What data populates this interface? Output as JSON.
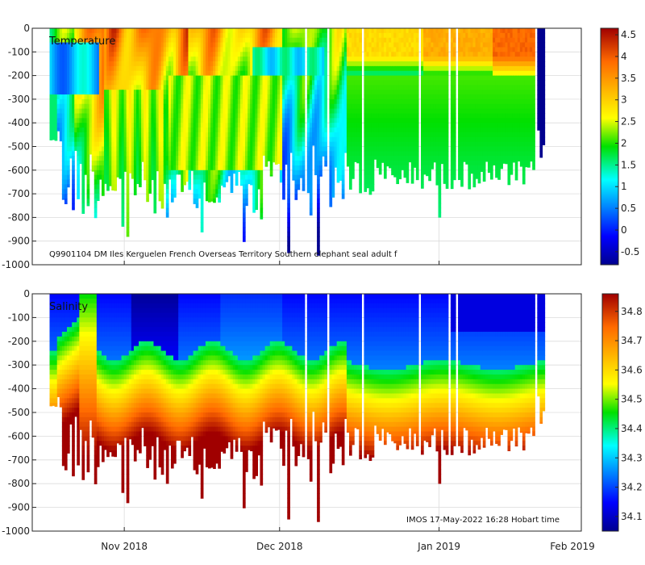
{
  "chart_data": [
    {
      "type": "heatmap",
      "title": "Temperature",
      "annotation": "Q9901104 DM Iles Kerguelen French Overseas Territory Southern elephant seal adult f",
      "y_ticks": [
        "0",
        "-100",
        "-200",
        "-300",
        "-400",
        "-500",
        "-600",
        "-700",
        "-800",
        "-900",
        "-1000"
      ],
      "ylim": [
        -1000,
        0
      ],
      "colorbar_ticks": [
        "4.5",
        "4",
        "3.5",
        "3",
        "2.5",
        "2",
        "1.5",
        "1",
        "0.5",
        "0",
        "-0.5"
      ],
      "colorbar_range": [
        -0.8,
        4.65
      ],
      "colormap": "jet-like",
      "grid": true
    },
    {
      "type": "heatmap",
      "title": "Salinity",
      "annotation": "IMOS 17-May-2022 16:28 Hobart time",
      "y_ticks": [
        "0",
        "-100",
        "-200",
        "-300",
        "-400",
        "-500",
        "-600",
        "-700",
        "-800",
        "-900",
        "-1000"
      ],
      "ylim": [
        -1000,
        0
      ],
      "colorbar_ticks": [
        "34.8",
        "34.7",
        "34.6",
        "34.5",
        "34.4",
        "34.3",
        "34.2",
        "34.1"
      ],
      "colorbar_range": [
        34.05,
        34.86
      ],
      "colormap": "jet-like",
      "grid": true
    }
  ],
  "x_axis": {
    "tick_labels": [
      "Nov 2018",
      "Dec 2018",
      "Jan 2019",
      "Feb 2019"
    ],
    "xlim_days": [
      0,
      105
    ],
    "tick_days": [
      17.6,
      47.3,
      77.8,
      108.6
    ]
  },
  "profiles": {
    "start_day": 3.6,
    "end_day": 97.8,
    "count": 200
  }
}
